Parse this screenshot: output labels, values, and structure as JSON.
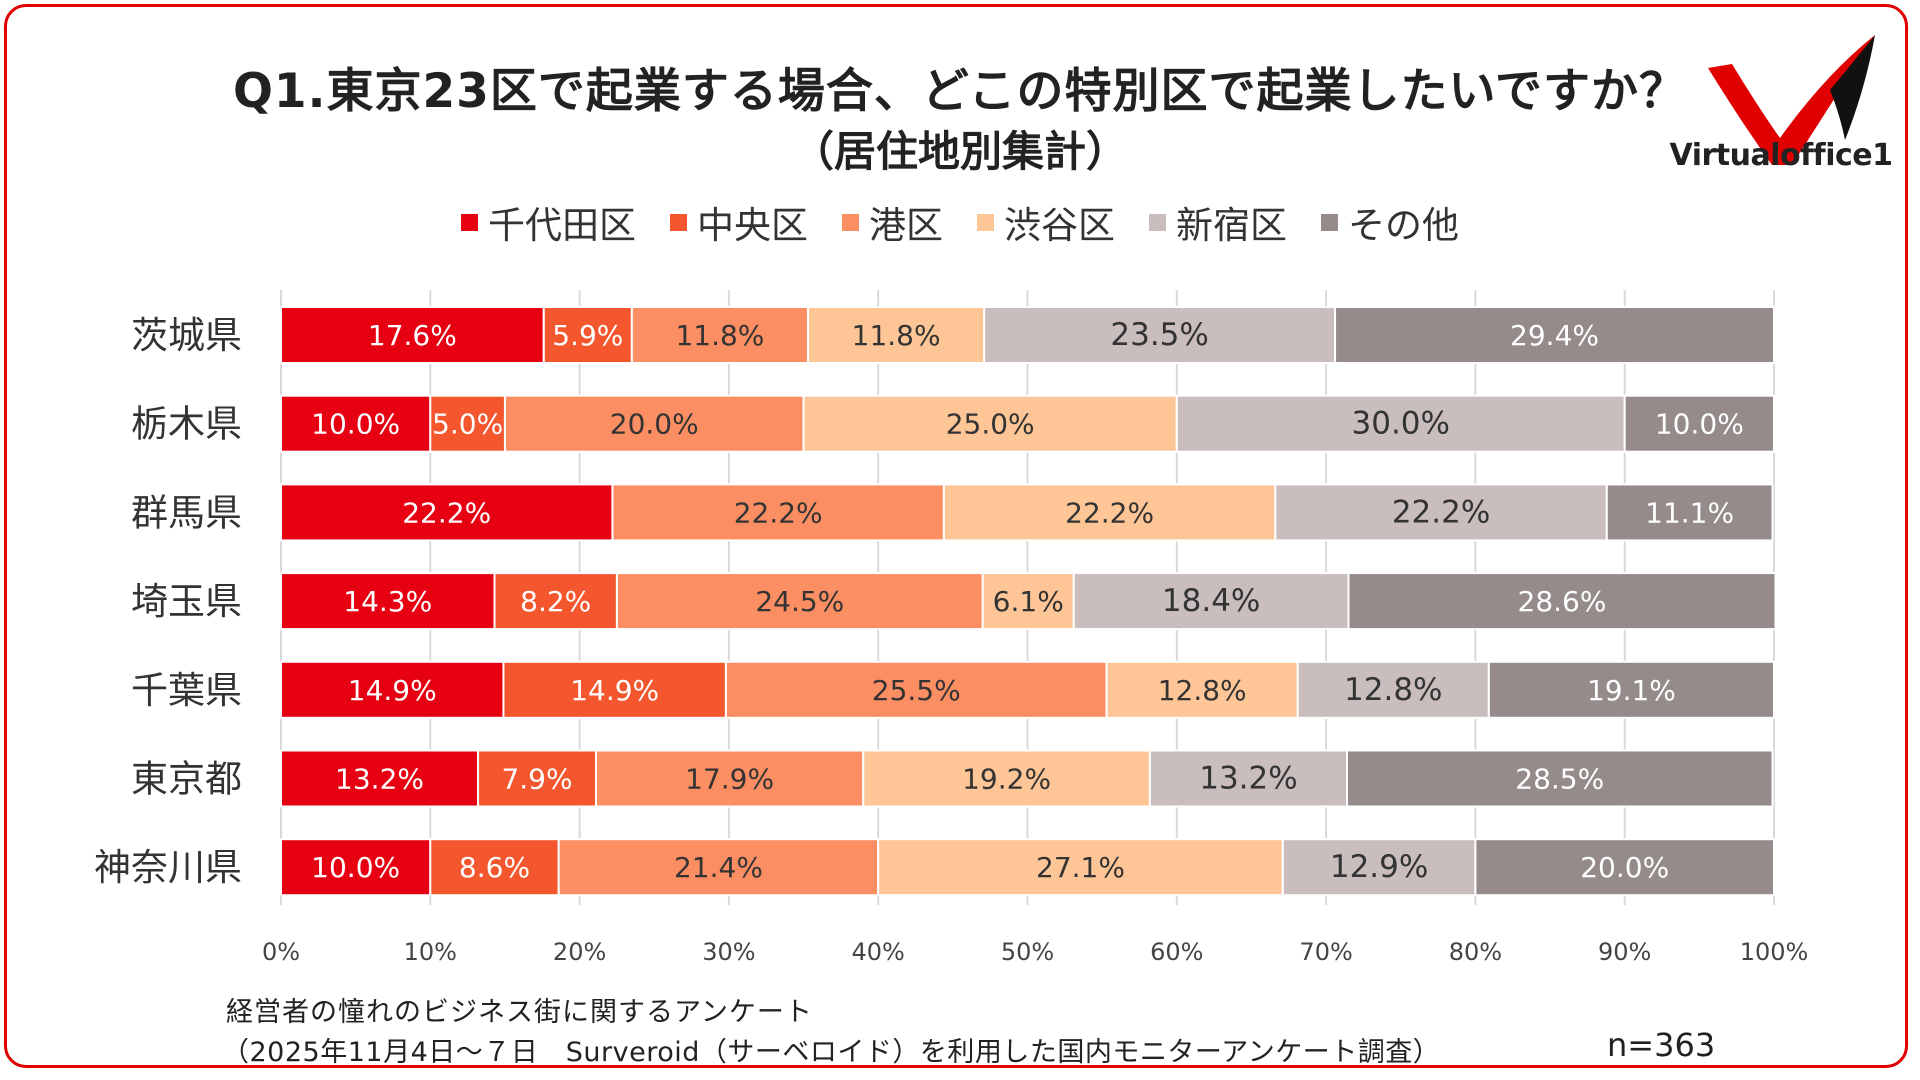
{
  "title": "Q1.東京23区で起業する場合、どこの特別区で起業したいですか？",
  "subtitle": "（居住地別集計）",
  "logo": {
    "text": "Virtualoffice1"
  },
  "footer": {
    "line1": "経営者の憧れのビジネス街に関するアンケート",
    "line2": "（2025年11月4日〜７日　Surveroid（サーベロイド）を利用した国内モニターアンケート調査）",
    "n": "n=363"
  },
  "colors": {
    "frame": "#e00000",
    "series": [
      "#e60012",
      "#f4562e",
      "#fb8e63",
      "#fec596",
      "#c9bdbd",
      "#958b8b"
    ]
  },
  "chart_data": {
    "type": "bar",
    "orientation": "horizontal",
    "stacked": true,
    "percent_stacked": true,
    "categories": [
      "茨城県",
      "栃木県",
      "群馬県",
      "埼玉県",
      "千葉県",
      "東京都",
      "神奈川県"
    ],
    "series": [
      {
        "name": "千代田区",
        "values": [
          17.6,
          10.0,
          22.2,
          14.3,
          14.9,
          13.2,
          10.0
        ]
      },
      {
        "name": "中央区",
        "values": [
          5.9,
          5.0,
          0,
          8.2,
          14.9,
          7.9,
          8.6
        ]
      },
      {
        "name": "港区",
        "values": [
          11.8,
          20.0,
          22.2,
          24.5,
          25.5,
          17.9,
          21.4
        ]
      },
      {
        "name": "渋谷区",
        "values": [
          11.8,
          25.0,
          22.2,
          6.1,
          12.8,
          19.2,
          27.1
        ]
      },
      {
        "name": "新宿区",
        "values": [
          23.5,
          30.0,
          22.2,
          18.4,
          12.8,
          13.2,
          12.9
        ]
      },
      {
        "name": "その他",
        "values": [
          29.4,
          10.0,
          11.1,
          28.6,
          19.1,
          28.5,
          20.0
        ]
      }
    ],
    "xlim": [
      0,
      100
    ],
    "xticks": [
      "0%",
      "10%",
      "20%",
      "30%",
      "40%",
      "50%",
      "60%",
      "70%",
      "80%",
      "90%",
      "100%"
    ],
    "grid": "vertical",
    "legend": "top"
  }
}
